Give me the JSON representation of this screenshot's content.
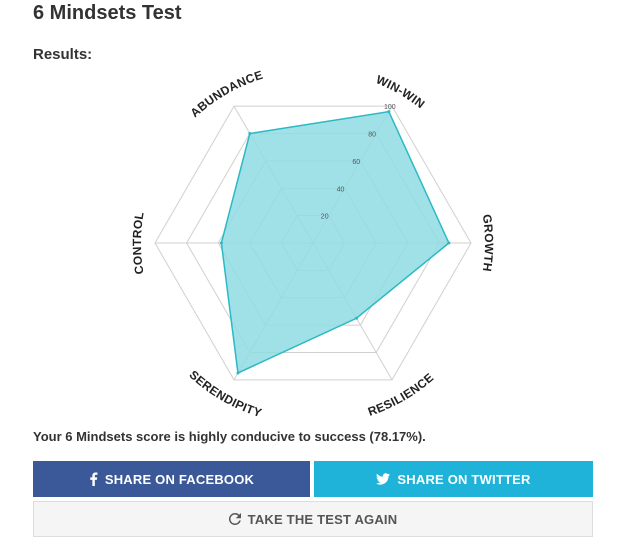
{
  "page": {
    "title": "6 Mindsets Test",
    "results_label": "Results:"
  },
  "chart_data": {
    "type": "radar",
    "axes": [
      "WIN-WIN",
      "GROWTH",
      "RESILIENCE",
      "SERENDIPITY",
      "CONTROL",
      "ABUNDANCE"
    ],
    "series": [
      {
        "values": [
          96,
          86,
          55,
          95,
          58,
          80
        ]
      }
    ],
    "range": [
      0,
      100
    ],
    "ticks": [
      "20",
      "40",
      "60",
      "80",
      "100"
    ],
    "fill_color": "#8fdce3",
    "stroke_color": "#2bb9c5"
  },
  "summary": {
    "text": "Your 6 Mindsets score is highly conducive to success (78.17%)."
  },
  "buttons": {
    "facebook": {
      "label": "SHARE ON FACEBOOK",
      "icon": "facebook-icon",
      "color": "#3b5998"
    },
    "twitter": {
      "label": "SHARE ON TWITTER",
      "icon": "twitter-icon",
      "color": "#1fb3d9"
    },
    "retake": {
      "label": "TAKE THE TEST AGAIN",
      "icon": "refresh-icon"
    }
  }
}
